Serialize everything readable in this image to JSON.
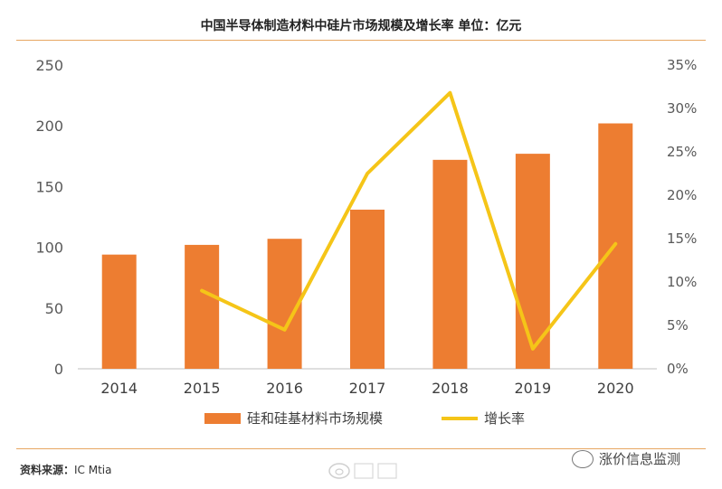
{
  "chart_data": {
    "type": "bar+line",
    "title": "中国半导体制造材料中硅片市场规模及增长率 单位：亿元",
    "categories": [
      "2014",
      "2015",
      "2016",
      "2017",
      "2018",
      "2019",
      "2020"
    ],
    "series": [
      {
        "name": "硅和硅基材料市场规模",
        "kind": "bar",
        "axis": "left",
        "values": [
          94,
          102,
          107,
          131,
          172,
          177,
          202
        ]
      },
      {
        "name": "增长率",
        "kind": "line",
        "axis": "right",
        "values": [
          null,
          9.0,
          4.5,
          22.5,
          31.8,
          2.3,
          14.4
        ]
      }
    ],
    "y_left": {
      "min": 0,
      "max": 250,
      "ticks": [
        "0",
        "50",
        "100",
        "150",
        "200",
        "250"
      ]
    },
    "y_right": {
      "min": 0,
      "max": 35,
      "ticks": [
        "0%",
        "5%",
        "10%",
        "15%",
        "20%",
        "25%",
        "30%",
        "35%"
      ]
    },
    "grid": false,
    "legend_position": "bottom",
    "colors": {
      "bar": "#ed7d31",
      "line": "#f5c518"
    }
  },
  "footer": {
    "source_label": "资料来源：",
    "source_value": "IC Mtia",
    "watermark_right": "涨价信息监测"
  }
}
